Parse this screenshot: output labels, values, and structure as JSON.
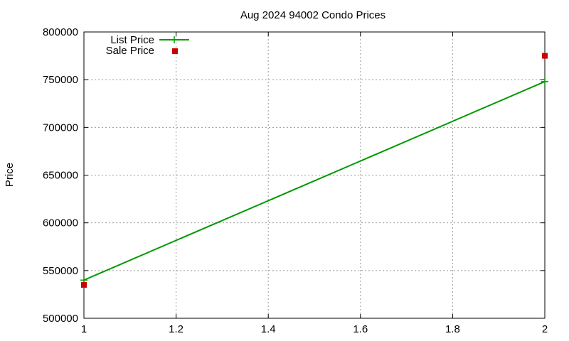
{
  "chart_data": {
    "type": "line",
    "title": "Aug 2024 94002 Condo Prices",
    "xlabel": "",
    "ylabel": "Price",
    "xlim": [
      1,
      2
    ],
    "ylim": [
      500000,
      800000
    ],
    "xticks": [
      "1",
      "1.2",
      "1.4",
      "1.6",
      "1.8",
      "2"
    ],
    "yticks": [
      "500000",
      "550000",
      "600000",
      "650000",
      "700000",
      "750000",
      "800000"
    ],
    "grid": true,
    "legend_position": "top-left",
    "series": [
      {
        "name": "List Price",
        "style": "linespoints",
        "color": "#009900",
        "x": [
          1,
          2
        ],
        "y": [
          540000,
          748000
        ]
      },
      {
        "name": "Sale Price",
        "style": "points",
        "color": "#cc0000",
        "x": [
          1,
          2
        ],
        "y": [
          535000,
          775000
        ]
      }
    ]
  }
}
